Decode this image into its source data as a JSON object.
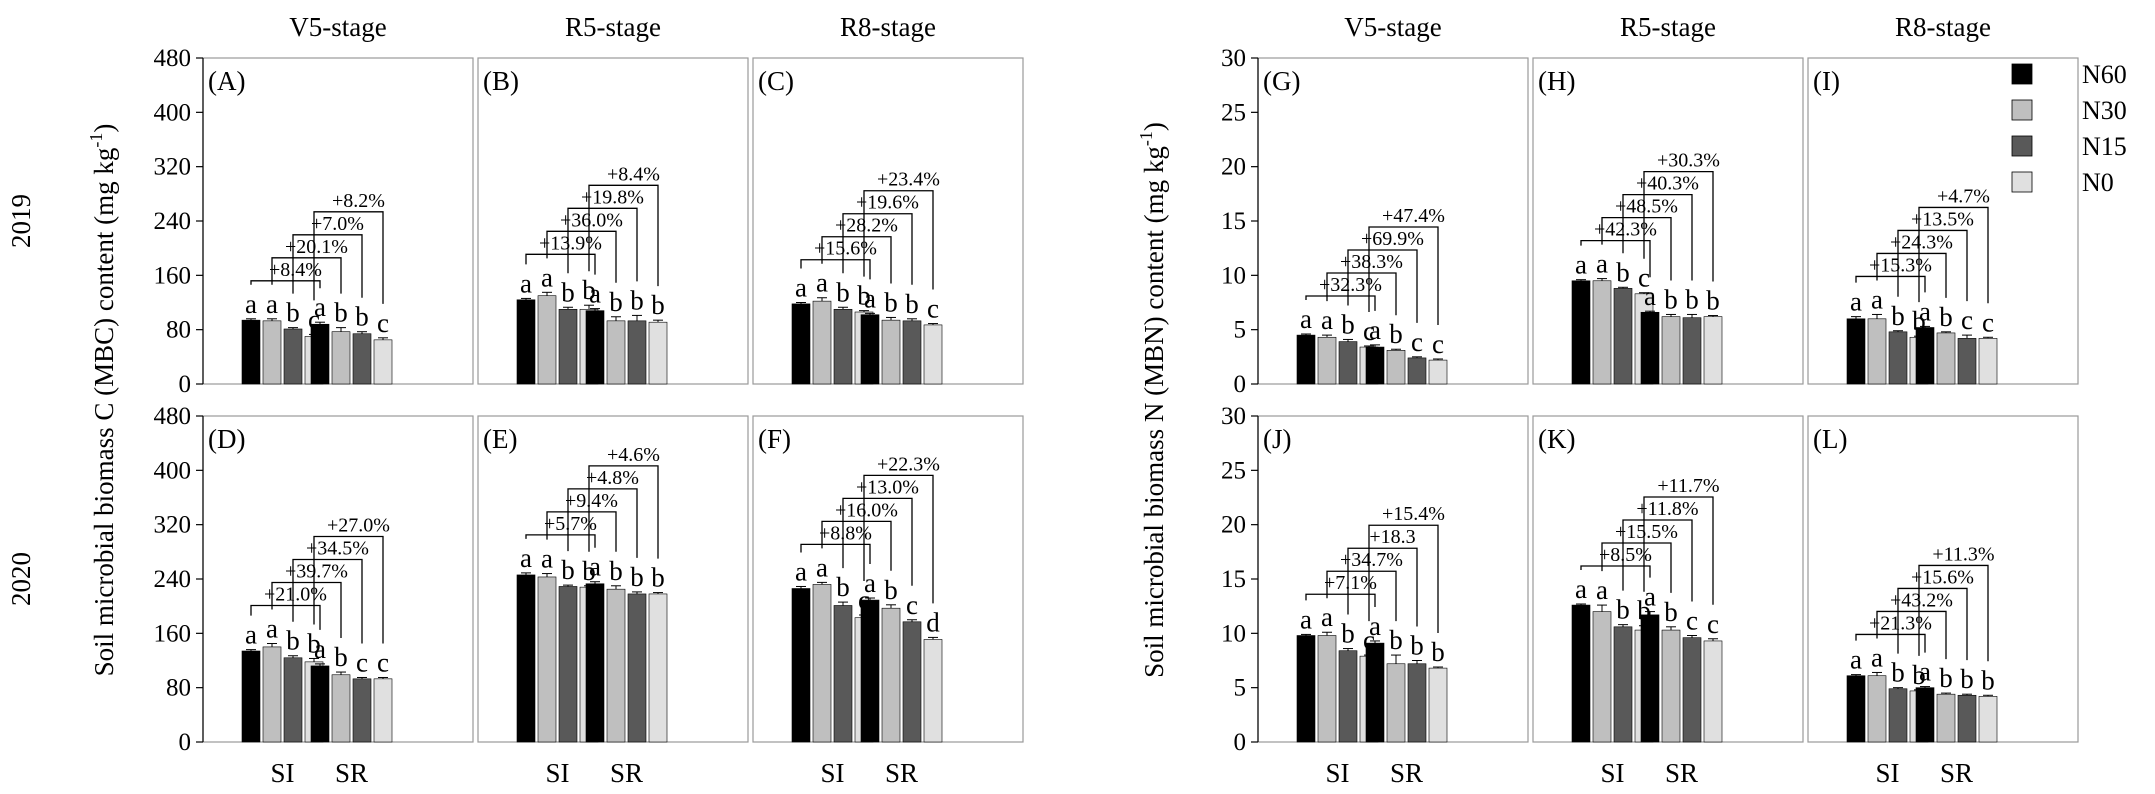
{
  "chart_data": {
    "type": "bar",
    "stage_titles": [
      "V5-stage",
      "R5-stage",
      "R8-stage"
    ],
    "years": [
      "2019",
      "2020"
    ],
    "categories": [
      "SI",
      "SR"
    ],
    "series_names": [
      "N60",
      "N30",
      "N15",
      "N0"
    ],
    "series_colors": [
      "#000000",
      "#bfbfbf",
      "#595959",
      "#e0e0e0"
    ],
    "groups": [
      {
        "name": "MBC",
        "ylabel": "Soil microbial biomass C (MBC) content (mg kg-1)",
        "ylabel_main": "Soil microbial biomass C (MBC) content (mg kg",
        "ylabel_sup": "-1",
        "ylabel_close": ")",
        "ylim": [
          0,
          480
        ],
        "yticks": [
          "0",
          "80",
          "160",
          "240",
          "320",
          "400",
          "480"
        ],
        "panels": [
          {
            "label": "(A)",
            "year": "2019",
            "stage": "V5-stage",
            "values": [
              [
                94,
                93,
                81,
                70
              ],
              [
                88,
                77,
                74,
                65
              ]
            ],
            "errors": [
              [
                2,
                3,
                2,
                3
              ],
              [
                3,
                6,
                3,
                3
              ]
            ],
            "letters": [
              [
                "a",
                "a",
                "b",
                "c"
              ],
              [
                "a",
                "b",
                "b",
                "c"
              ]
            ],
            "percents": [
              "+8.4%",
              "+20.1%",
              "+7.0%",
              "+8.2%"
            ]
          },
          {
            "label": "(B)",
            "year": "2019",
            "stage": "R5-stage",
            "values": [
              [
                124,
                130,
                110,
                110
              ],
              [
                108,
                93,
                93,
                91
              ]
            ],
            "errors": [
              [
                2,
                5,
                3,
                6
              ],
              [
                3,
                6,
                8,
                3
              ]
            ],
            "letters": [
              [
                "a",
                "a",
                "b",
                "b"
              ],
              [
                "a",
                "b",
                "b",
                "b"
              ]
            ],
            "percents": [
              "+13.9%",
              "+36.0%",
              "+19.8%",
              "+8.4%"
            ]
          },
          {
            "label": "(C)",
            "year": "2019",
            "stage": "R8-stage",
            "values": [
              [
                118,
                122,
                110,
                106
              ],
              [
                102,
                94,
                93,
                87
              ]
            ],
            "errors": [
              [
                2,
                5,
                3,
                2
              ],
              [
                2,
                4,
                3,
                2
              ]
            ],
            "letters": [
              [
                "a",
                "a",
                "b",
                "b"
              ],
              [
                "a",
                "b",
                "b",
                "c"
              ]
            ],
            "percents": [
              "+15.6%",
              "+28.2%",
              "+19.6%",
              "+23.4%"
            ]
          },
          {
            "label": "(D)",
            "year": "2020",
            "stage": "V5-stage",
            "values": [
              [
                134,
                140,
                124,
                118
              ],
              [
                112,
                99,
                93,
                93
              ]
            ],
            "errors": [
              [
                2,
                5,
                3,
                5
              ],
              [
                3,
                4,
                2,
                2
              ]
            ],
            "letters": [
              [
                "a",
                "a",
                "b",
                "b"
              ],
              [
                "a",
                "b",
                "c",
                "c"
              ]
            ],
            "percents": [
              "+21.0%",
              "+39.7%",
              "+34.5%",
              "+27.0%"
            ]
          },
          {
            "label": "(E)",
            "year": "2020",
            "stage": "R5-stage",
            "values": [
              [
                246,
                243,
                229,
                228
              ],
              [
                233,
                225,
                218,
                218
              ]
            ],
            "errors": [
              [
                3,
                5,
                2,
                2
              ],
              [
                3,
                5,
                3,
                2
              ]
            ],
            "letters": [
              [
                "a",
                "a",
                "b",
                "b"
              ],
              [
                "a",
                "b",
                "b",
                "b"
              ]
            ],
            "percents": [
              "+5.7%",
              "+9.4%",
              "+4.8%",
              "+4.6%"
            ]
          },
          {
            "label": "(F)",
            "year": "2020",
            "stage": "R8-stage",
            "values": [
              [
                226,
                232,
                201,
                183
              ],
              [
                209,
                197,
                177,
                151
              ]
            ],
            "errors": [
              [
                3,
                3,
                5,
                4
              ],
              [
                3,
                5,
                3,
                3
              ]
            ],
            "letters": [
              [
                "a",
                "a",
                "b",
                "c"
              ],
              [
                "a",
                "b",
                "c",
                "d"
              ]
            ],
            "percents": [
              "+8.8%",
              "+16.0%",
              "+13.0%",
              "+22.3%"
            ]
          }
        ]
      },
      {
        "name": "MBN",
        "ylabel": "Soil microbial biomass N (MBN) content (mg kg-1)",
        "ylabel_main": "Soil microbial biomass N (MBN) content (mg kg",
        "ylabel_sup": "-1",
        "ylabel_close": ")",
        "ylim": [
          0,
          30
        ],
        "yticks": [
          "0",
          "5",
          "10",
          "15",
          "20",
          "25",
          "30"
        ],
        "panels": [
          {
            "label": "(G)",
            "year": "2019",
            "stage": "V5-stage",
            "values": [
              [
                4.5,
                4.3,
                3.9,
                3.4
              ],
              [
                3.4,
                3.1,
                2.4,
                2.2
              ]
            ],
            "errors": [
              [
                0.1,
                0.2,
                0.2,
                0.1
              ],
              [
                0.2,
                0.1,
                0.1,
                0.1
              ]
            ],
            "letters": [
              [
                "a",
                "a",
                "b",
                "c"
              ],
              [
                "a",
                "b",
                "c",
                "c"
              ]
            ],
            "percents": [
              "+32.3%",
              "+38.3%",
              "+69.9%",
              "+47.4%"
            ]
          },
          {
            "label": "(H)",
            "year": "2019",
            "stage": "R5-stage",
            "values": [
              [
                9.5,
                9.5,
                8.8,
                8.3
              ],
              [
                6.6,
                6.2,
                6.1,
                6.2
              ]
            ],
            "errors": [
              [
                0.1,
                0.2,
                0.1,
                0.1
              ],
              [
                0.1,
                0.2,
                0.3,
                0.1
              ]
            ],
            "letters": [
              [
                "a",
                "a",
                "b",
                "c"
              ],
              [
                "a",
                "b",
                "b",
                "b"
              ]
            ],
            "percents": [
              "+42.3%",
              "+48.5%",
              "+40.3%",
              "+30.3%"
            ]
          },
          {
            "label": "(I)",
            "year": "2019",
            "stage": "R8-stage",
            "values": [
              [
                6.0,
                6.0,
                4.8,
                4.3
              ],
              [
                5.2,
                4.7,
                4.2,
                4.2
              ]
            ],
            "errors": [
              [
                0.2,
                0.4,
                0.1,
                0.1
              ],
              [
                0.1,
                0.1,
                0.3,
                0.1
              ]
            ],
            "letters": [
              [
                "a",
                "a",
                "b",
                "b"
              ],
              [
                "a",
                "b",
                "c",
                "c"
              ]
            ],
            "percents": [
              "+15.3%",
              "+24.3%",
              "+13.5%",
              "+4.7%"
            ]
          },
          {
            "label": "(J)",
            "year": "2020",
            "stage": "V5-stage",
            "values": [
              [
                9.8,
                9.8,
                8.4,
                7.9
              ],
              [
                9.1,
                7.2,
                7.2,
                6.8
              ]
            ],
            "errors": [
              [
                0.1,
                0.3,
                0.2,
                0.1
              ],
              [
                0.2,
                0.8,
                0.3,
                0.1
              ]
            ],
            "letters": [
              [
                "a",
                "a",
                "b",
                "c"
              ],
              [
                "a",
                "b",
                "b",
                "b"
              ]
            ],
            "percents": [
              "+7.1%",
              "+34.7%",
              "+18.3",
              "+15.4%"
            ]
          },
          {
            "label": "(K)",
            "year": "2020",
            "stage": "R5-stage",
            "values": [
              [
                12.6,
                12.0,
                10.6,
                10.3
              ],
              [
                11.7,
                10.3,
                9.6,
                9.3
              ]
            ],
            "errors": [
              [
                0.1,
                0.6,
                0.2,
                0.4
              ],
              [
                0.3,
                0.3,
                0.2,
                0.2
              ]
            ],
            "letters": [
              [
                "a",
                "a",
                "b",
                "b"
              ],
              [
                "a",
                "b",
                "c",
                "c"
              ]
            ],
            "percents": [
              "+8.5%",
              "+15.5%",
              "+11.8%",
              "+11.7%"
            ]
          },
          {
            "label": "(L)",
            "year": "2020",
            "stage": "R8-stage",
            "values": [
              [
                6.1,
                6.1,
                4.9,
                4.7
              ],
              [
                5.0,
                4.4,
                4.3,
                4.2
              ]
            ],
            "errors": [
              [
                0.1,
                0.3,
                0.1,
                0.1
              ],
              [
                0.1,
                0.1,
                0.1,
                0.1
              ]
            ],
            "letters": [
              [
                "a",
                "a",
                "b",
                "b"
              ],
              [
                "a",
                "b",
                "b",
                "b"
              ]
            ],
            "percents": [
              "+21.3%",
              "+43.2%",
              "+15.6%",
              "+11.3%"
            ]
          }
        ]
      }
    ]
  }
}
